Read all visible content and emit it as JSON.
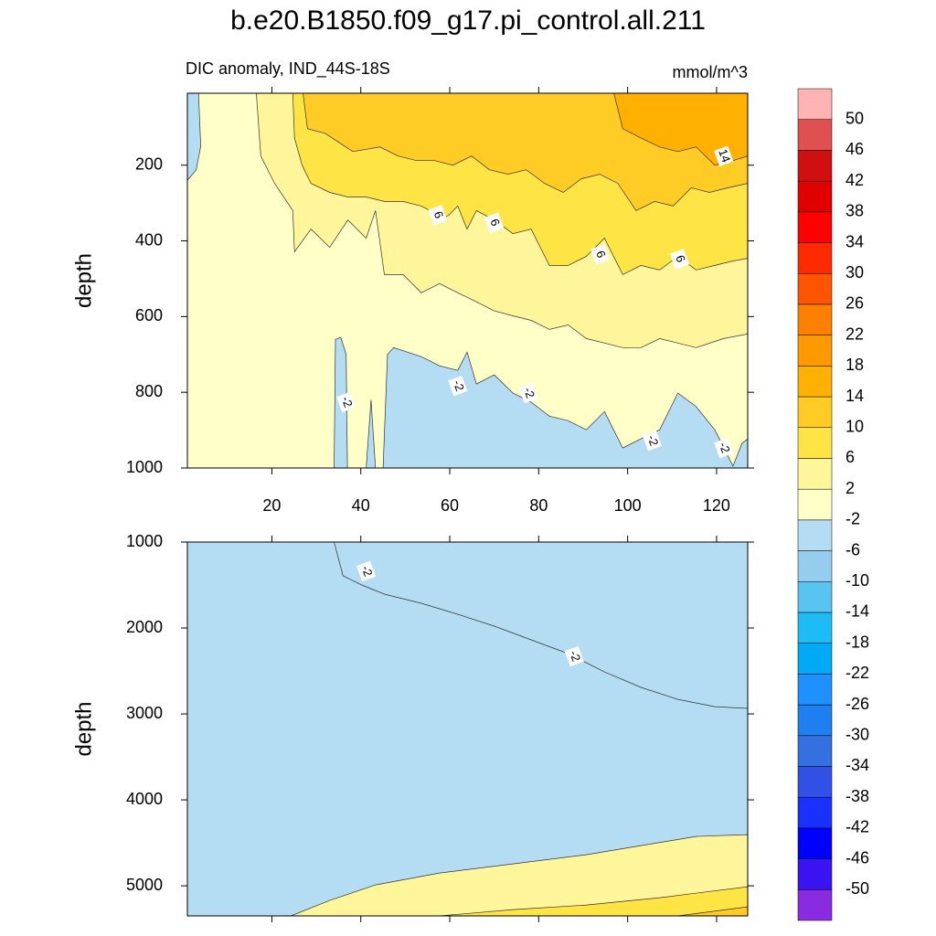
{
  "chart_data": {
    "type": "contour",
    "title": "b.e20.B1850.f09_g17.pi_control.all.211",
    "subtitle": "DIC anomaly, IND_44S-18S",
    "units": "mmol/m^3",
    "panels": [
      {
        "ylabel": "depth",
        "xlim": [
          1,
          127
        ],
        "ylim": [
          10,
          1000
        ],
        "xticks": [
          20,
          40,
          60,
          80,
          100,
          120
        ],
        "yticks": [
          200,
          400,
          600,
          800,
          1000
        ],
        "regions": [
          {
            "level": 2,
            "color": "#fff59a",
            "x": [
              16.5,
              17.5,
              20.6,
              24.7,
              25.1,
              28.8,
              33,
              37.1,
              41.2,
              43.3,
              45.3,
              49.5,
              53.6,
              57.7,
              61.8,
              66,
              70,
              74.2,
              78.3,
              82.4,
              86.6,
              90.7,
              94.8,
              98.9,
              103,
              107.2,
              111.3,
              115.4,
              121.6,
              127,
              127,
              16.5
            ],
            "y": [
              10,
              176,
              248,
              320,
              429,
              369,
              417,
              345,
              393,
              320,
              489,
              489,
              537,
              513,
              537,
              561,
              585,
              598,
              610,
              634,
              622,
              658,
              670,
              682,
              682,
              658,
              670,
              682,
              658,
              646,
              10,
              10
            ]
          },
          {
            "level": 6,
            "color": "#ffe445",
            "x": [
              24.7,
              25.1,
              26.8,
              28.8,
              33,
              37.1,
              41.2,
              45.3,
              49.5,
              53.6,
              55.6,
              57.7,
              59.8,
              61.8,
              63.9,
              66,
              70,
              74.2,
              78.3,
              82.4,
              86.6,
              90.7,
              94.8,
              98.9,
              103,
              107.2,
              111.3,
              115.4,
              119.6,
              123.7,
              127,
              127,
              24.7
            ],
            "y": [
              10,
              128,
              200,
              248,
              272,
              284,
              284,
              296,
              296,
              308,
              320,
              345,
              332,
              308,
              369,
              320,
              345,
              381,
              369,
              465,
              465,
              441,
              393,
              489,
              465,
              477,
              441,
              477,
              465,
              453,
              446,
              10,
              10
            ]
          },
          {
            "level": 10,
            "color": "#ffcc26",
            "x": [
              27,
              28,
              32,
              38.2,
              44.3,
              48.4,
              52.5,
              56.6,
              60.7,
              64.9,
              68.9,
              73.1,
              77.2,
              81.3,
              85.5,
              89.6,
              93.7,
              97.8,
              101.9,
              106.1,
              110.2,
              114.3,
              118.4,
              122.5,
              127,
              127,
              27
            ],
            "y": [
              10,
              104,
              116,
              164,
              152,
              176,
              188,
              188,
              200,
              176,
              212,
              224,
              212,
              248,
              272,
              236,
              224,
              248,
              320,
              296,
              308,
              260,
              272,
              260,
              248,
              10,
              10
            ]
          },
          {
            "level": 14,
            "color": "#ffb000",
            "x": [
              96.9,
              98.9,
              103,
              107.2,
              111.3,
              115.4,
              119.6,
              123.7,
              127,
              127,
              96.9
            ],
            "y": [
              10,
              104,
              128,
              152,
              164,
              152,
              200,
              188,
              176,
              10,
              10
            ]
          },
          {
            "level": -2,
            "color": "#b4dcf2",
            "x": [
              1,
              3.5,
              4,
              3,
              1,
              1
            ],
            "y": [
              10,
              10,
              150,
              212,
              240,
              10
            ]
          },
          {
            "level": -2,
            "color": "#b4dcf2",
            "x": [
              34,
              34.3,
              35.5,
              36.7,
              37,
              34
            ],
            "y": [
              1000,
              660,
              655,
              700,
              1000,
              1000
            ]
          },
          {
            "level": -2,
            "color": "#b4dcf2",
            "x": [
              41.2,
              42.3,
              43.3,
              41.2
            ],
            "y": [
              1000,
              820,
              1000,
              1000
            ]
          },
          {
            "level": -2,
            "color": "#b4dcf2",
            "x": [
              45,
              46,
              47.4,
              53.6,
              57.7,
              61.8,
              63.9,
              66,
              70,
              74.2,
              78.3,
              82.4,
              86.6,
              90.7,
              94.8,
              98.9,
              103,
              107.2,
              111.3,
              115.4,
              119.6,
              123.7,
              125.7,
              127,
              127,
              45
            ],
            "y": [
              1000,
              700,
              682,
              706,
              730,
              742,
              694,
              778,
              754,
              802,
              826,
              863,
              875,
              899,
              851,
              947,
              923,
              899,
              802,
              838,
              899,
              995,
              935,
              923,
              1000,
              1000
            ]
          }
        ],
        "contour_labels": [
          {
            "label": "14",
            "x": 121.6,
            "y": 176
          },
          {
            "label": "6",
            "x": 57.3,
            "y": 332
          },
          {
            "label": "6",
            "x": 70,
            "y": 352
          },
          {
            "label": "6",
            "x": 93.8,
            "y": 436
          },
          {
            "label": "6",
            "x": 111.7,
            "y": 448
          },
          {
            "label": "-2",
            "x": 36.7,
            "y": 826
          },
          {
            "label": "-2",
            "x": 61.8,
            "y": 783
          },
          {
            "label": "-2",
            "x": 77.7,
            "y": 802
          },
          {
            "label": "-2",
            "x": 105.5,
            "y": 928
          },
          {
            "label": "-2",
            "x": 121.6,
            "y": 947
          }
        ]
      },
      {
        "ylabel": "depth",
        "xlim": [
          1,
          127
        ],
        "ylim": [
          1000,
          5350
        ],
        "yticks": [
          1000,
          2000,
          3000,
          4000,
          5000
        ],
        "regions": [
          {
            "level": -2,
            "color": "#b4dcf2",
            "x": [
              34,
              36,
              40.2,
              45.3,
              53.6,
              61.8,
              70,
              78.3,
              86.6,
              94.8,
              103,
              111.3,
              119.6,
              127,
              127,
              34
            ],
            "y": [
              1000,
              1394,
              1500,
              1606,
              1713,
              1840,
              1979,
              2138,
              2298,
              2511,
              2691,
              2830,
              2915,
              2936,
              1000,
              1000
            ]
          },
          {
            "level": 2,
            "color": "#fff59a",
            "x": [
              24.3,
              33,
              43.3,
              57.7,
              74.2,
              90.7,
              103,
              115.4,
              127,
              127,
              24.3
            ],
            "y": [
              5350,
              5170,
              4989,
              4851,
              4745,
              4638,
              4532,
              4426,
              4404,
              5350,
              5350
            ]
          },
          {
            "level": 6,
            "color": "#ffe445",
            "x": [
              57.7,
              74.2,
              90.7,
              107.2,
              127,
              127,
              57.7
            ],
            "y": [
              5350,
              5277,
              5223,
              5138,
              5011,
              5350,
              5350
            ]
          },
          {
            "level": 10,
            "color": "#ffcc26",
            "x": [
              111.3,
              127,
              127,
              111.3
            ],
            "y": [
              5350,
              5245,
              5350,
              5350
            ]
          }
        ],
        "contour_labels": [
          {
            "label": "-2",
            "x": 41.2,
            "y": 1340
          },
          {
            "label": "-2",
            "x": 88,
            "y": 2330
          }
        ]
      }
    ],
    "colorbar": {
      "levels": [
        -50,
        -46,
        -42,
        -38,
        -34,
        -30,
        -26,
        -22,
        -18,
        -14,
        -10,
        -6,
        -2,
        2,
        6,
        10,
        14,
        18,
        22,
        26,
        30,
        34,
        38,
        42,
        46,
        50
      ],
      "colors": [
        "#8a2be2",
        "#3a14f0",
        "#0000ff",
        "#1a30ff",
        "#3050e6",
        "#3570e0",
        "#1e80f0",
        "#1e90ff",
        "#00aaf5",
        "#1ebcf5",
        "#5ac4f0",
        "#96cdee",
        "#b4dcf2",
        "#ffffc8",
        "#fff59a",
        "#ffe445",
        "#ffcc26",
        "#ffb000",
        "#ff9900",
        "#ff7f00",
        "#ff5500",
        "#ff2a00",
        "#ff0000",
        "#e00000",
        "#d01010",
        "#e05050",
        "#ffb3b3"
      ]
    }
  }
}
